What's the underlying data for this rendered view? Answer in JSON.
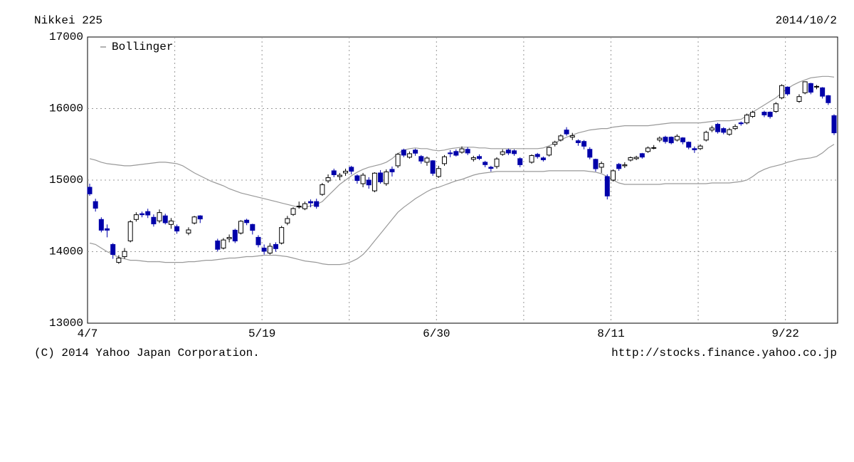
{
  "chart_data": {
    "type": "candlestick",
    "title": "Nikkei 225",
    "date_label": "2014/10/2",
    "copyright": "(C) 2014 Yahoo Japan Corporation.",
    "source_url": "http://stocks.finance.yahoo.co.jp",
    "categories": [
      "4/7",
      null,
      null,
      null,
      null,
      null,
      null,
      null,
      null,
      null,
      null,
      null,
      null,
      null,
      null,
      null,
      null,
      null,
      null,
      null,
      null,
      null,
      null,
      null,
      null,
      null,
      null,
      null,
      null,
      null,
      "5/19",
      null,
      null,
      null,
      null,
      null,
      null,
      null,
      null,
      null,
      null,
      null,
      null,
      null,
      null,
      null,
      null,
      null,
      null,
      null,
      null,
      null,
      null,
      null,
      null,
      null,
      null,
      null,
      null,
      null,
      "6/30",
      null,
      null,
      null,
      null,
      null,
      null,
      null,
      null,
      null,
      null,
      null,
      null,
      null,
      null,
      null,
      null,
      null,
      null,
      null,
      null,
      null,
      null,
      null,
      null,
      null,
      null,
      null,
      null,
      null,
      "8/11",
      null,
      null,
      null,
      null,
      null,
      null,
      null,
      null,
      null,
      null,
      null,
      null,
      null,
      null,
      null,
      null,
      null,
      null,
      null,
      null,
      null,
      null,
      null,
      null,
      null,
      null,
      null,
      null,
      null,
      "9/22",
      null,
      null,
      null,
      null,
      null,
      null,
      null,
      null
    ],
    "open": [
      14900,
      14700,
      14450,
      14320,
      14100,
      13850,
      13930,
      14150,
      14450,
      14530,
      14560,
      14480,
      14430,
      14500,
      14380,
      14350,
      null,
      14260,
      14400,
      14500,
      null,
      null,
      14150,
      14050,
      14180,
      14300,
      14260,
      14440,
      14380,
      14200,
      14050,
      13980,
      14100,
      14120,
      14400,
      14520,
      14630,
      14600,
      14700,
      14700,
      14800,
      14990,
      15130,
      15050,
      15100,
      15180,
      15060,
      14950,
      15000,
      14850,
      15100,
      14950,
      15150,
      15200,
      15420,
      15320,
      15420,
      15330,
      15250,
      15270,
      15050,
      15230,
      15380,
      15400,
      15390,
      15430,
      15290,
      15330,
      15250,
      15180,
      15190,
      15360,
      15420,
      15410,
      15300,
      null,
      15250,
      15360,
      15310,
      15350,
      15500,
      15560,
      15700,
      15600,
      15550,
      15540,
      15430,
      15290,
      15180,
      15050,
      15000,
      15220,
      15200,
      15280,
      15300,
      15370,
      15400,
      15450,
      15560,
      15600,
      15600,
      15560,
      15590,
      15530,
      15440,
      15440,
      15560,
      15700,
      15780,
      15720,
      15640,
      15720,
      15800,
      15800,
      15890,
      null,
      15950,
      15950,
      15960,
      16150,
      16300,
      null,
      16100,
      16220,
      16350,
      16300,
      16290,
      16180,
      15900
    ],
    "high": [
      14950,
      14740,
      14480,
      14380,
      14120,
      13950,
      14050,
      14440,
      14550,
      14560,
      14600,
      14520,
      14590,
      14530,
      14470,
      14380,
      null,
      14340,
      14500,
      14510,
      null,
      null,
      14180,
      14190,
      14240,
      14320,
      14440,
      14460,
      14390,
      14230,
      14100,
      14120,
      14130,
      14360,
      14500,
      14620,
      14700,
      14700,
      14730,
      14740,
      14960,
      15080,
      15160,
      15100,
      15160,
      15200,
      15080,
      15100,
      15040,
      15110,
      15140,
      15150,
      15190,
      15380,
      15440,
      15400,
      15440,
      15350,
      15330,
      15280,
      15200,
      15350,
      15420,
      15430,
      15470,
      15460,
      15340,
      15360,
      15270,
      15200,
      15320,
      15430,
      15440,
      15430,
      15320,
      null,
      15360,
      15380,
      15330,
      15470,
      15550,
      15640,
      15740,
      15660,
      15570,
      15560,
      15460,
      15300,
      15260,
      15080,
      15150,
      15240,
      15250,
      15330,
      15340,
      15380,
      15470,
      15490,
      15610,
      15620,
      15610,
      15640,
      15600,
      15540,
      15470,
      15500,
      15690,
      15760,
      15800,
      15740,
      15730,
      15780,
      15820,
      15930,
      15970,
      null,
      15970,
      15960,
      16090,
      16340,
      16310,
      null,
      16200,
      16380,
      16360,
      16330,
      16300,
      16190,
      15920
    ],
    "low": [
      14780,
      14560,
      14270,
      14200,
      13900,
      13830,
      13900,
      14130,
      14420,
      14480,
      14470,
      14350,
      14400,
      14380,
      14320,
      14250,
      null,
      14230,
      14380,
      14400,
      null,
      null,
      14000,
      14030,
      14130,
      14120,
      14240,
      14370,
      14240,
      14060,
      13960,
      13960,
      14000,
      14100,
      14370,
      14500,
      14600,
      14580,
      14620,
      14600,
      14780,
      14960,
      15040,
      15000,
      15060,
      15080,
      14950,
      14900,
      14880,
      14830,
      14950,
      14920,
      15050,
      15170,
      15320,
      15300,
      15340,
      15230,
      15200,
      15060,
      15030,
      15200,
      15320,
      15330,
      15370,
      15350,
      15260,
      15280,
      15180,
      15120,
      15160,
      15340,
      15350,
      15340,
      15180,
      null,
      15230,
      15300,
      15260,
      15330,
      15470,
      15540,
      15620,
      15560,
      15480,
      15430,
      15290,
      15120,
      15100,
      14730,
      14980,
      15130,
      15170,
      15260,
      15280,
      15300,
      15380,
      15430,
      15530,
      15510,
      15500,
      15540,
      15500,
      15430,
      15380,
      15420,
      15540,
      15670,
      15650,
      15640,
      15620,
      15700,
      15760,
      15780,
      15870,
      null,
      15880,
      15860,
      15940,
      16130,
      16180,
      null,
      16080,
      16200,
      16200,
      16270,
      16140,
      16050,
      15630
    ],
    "close": [
      14808,
      14607,
      14300,
      14300,
      13960,
      13910,
      14003,
      14417,
      14516,
      14516,
      14512,
      14388,
      14546,
      14404,
      14429,
      14288,
      null,
      14304,
      14485,
      14457,
      null,
      null,
      14033,
      14163,
      14199,
      14149,
      14425,
      14405,
      14298,
      14096,
      14006,
      14075,
      14042,
      14337,
      14462,
      14602,
      14636,
      14670,
      14681,
      14632,
      14935,
      15034,
      15075,
      15069,
      15124,
      15124,
      14994,
      15069,
      14933,
      15097,
      14975,
      15115,
      15115,
      15361,
      15349,
      15369,
      15376,
      15266,
      15308,
      15095,
      15162,
      15326,
      15369,
      15348,
      15437,
      15379,
      15314,
      15302,
      15216,
      15164,
      15296,
      15395,
      15379,
      15370,
      15215,
      null,
      15343,
      15328,
      15284,
      15457,
      15529,
      15618,
      15646,
      15621,
      15523,
      15474,
      15320,
      15159,
      15232,
      14778,
      15130,
      15161,
      15213,
      15314,
      15318,
      15322,
      15449,
      15454,
      15586,
      15539,
      15521,
      15613,
      15535,
      15459,
      15424,
      15476,
      15668,
      15728,
      15676,
      15668,
      15705,
      15749,
      15788,
      15909,
      15948,
      null,
      15911,
      15888,
      16067,
      16321,
      16205,
      null,
      16167,
      16374,
      16229,
      16310,
      16173,
      16082,
      15661
    ],
    "up_color": "#ffffff",
    "down_color": "#0000aa",
    "bands": {
      "name": "Bollinger",
      "color": "#999999",
      "upper": [
        15300,
        15280,
        15250,
        15230,
        15220,
        15210,
        15200,
        15200,
        15210,
        15220,
        15230,
        15240,
        15250,
        15250,
        15240,
        15230,
        15200,
        15150,
        15100,
        15060,
        15020,
        14980,
        14950,
        14920,
        14880,
        14850,
        14820,
        14800,
        14780,
        14760,
        14740,
        14720,
        14700,
        14680,
        14660,
        14640,
        14620,
        14620,
        14640,
        14660,
        14700,
        14780,
        14860,
        14940,
        15000,
        15060,
        15110,
        15150,
        15180,
        15200,
        15220,
        15250,
        15300,
        15370,
        15420,
        15440,
        15450,
        15440,
        15440,
        15420,
        15410,
        15420,
        15440,
        15450,
        15460,
        15460,
        15460,
        15450,
        15450,
        15440,
        15440,
        15440,
        15440,
        15440,
        15440,
        15440,
        15440,
        15440,
        15450,
        15480,
        15520,
        15560,
        15600,
        15630,
        15660,
        15680,
        15700,
        15710,
        15720,
        15720,
        15740,
        15750,
        15760,
        15760,
        15760,
        15760,
        15760,
        15770,
        15780,
        15790,
        15800,
        15800,
        15800,
        15800,
        15800,
        15800,
        15810,
        15820,
        15830,
        15830,
        15830,
        15840,
        15850,
        15900,
        15950,
        16000,
        16050,
        16100,
        16150,
        16220,
        16280,
        16330,
        16370,
        16400,
        16430,
        16440,
        16450,
        16450,
        16440
      ],
      "lower": [
        14120,
        14100,
        14050,
        14000,
        13960,
        13920,
        13900,
        13880,
        13880,
        13870,
        13860,
        13860,
        13860,
        13850,
        13850,
        13850,
        13850,
        13860,
        13860,
        13870,
        13880,
        13880,
        13890,
        13900,
        13910,
        13910,
        13920,
        13930,
        13930,
        13940,
        13950,
        13950,
        13950,
        13940,
        13930,
        13910,
        13890,
        13870,
        13860,
        13850,
        13830,
        13820,
        13820,
        13820,
        13830,
        13860,
        13900,
        13960,
        14050,
        14150,
        14250,
        14350,
        14450,
        14550,
        14620,
        14680,
        14740,
        14790,
        14840,
        14880,
        14900,
        14930,
        14960,
        14990,
        15010,
        15040,
        15070,
        15090,
        15100,
        15110,
        15120,
        15120,
        15120,
        15120,
        15120,
        15120,
        15120,
        15120,
        15120,
        15130,
        15130,
        15130,
        15130,
        15130,
        15130,
        15130,
        15120,
        15110,
        15090,
        15050,
        15000,
        14960,
        14940,
        14940,
        14940,
        14940,
        14940,
        14940,
        14940,
        14950,
        14950,
        14950,
        14950,
        14950,
        14950,
        14950,
        14950,
        14960,
        14960,
        14960,
        14960,
        14970,
        14980,
        15000,
        15050,
        15110,
        15150,
        15180,
        15200,
        15220,
        15250,
        15270,
        15290,
        15300,
        15310,
        15330,
        15380,
        15450,
        15500
      ]
    },
    "ylim": [
      13000,
      17000
    ],
    "yticks": [
      13000,
      14000,
      15000,
      16000,
      17000
    ],
    "grid": true,
    "legend": "top-left"
  }
}
